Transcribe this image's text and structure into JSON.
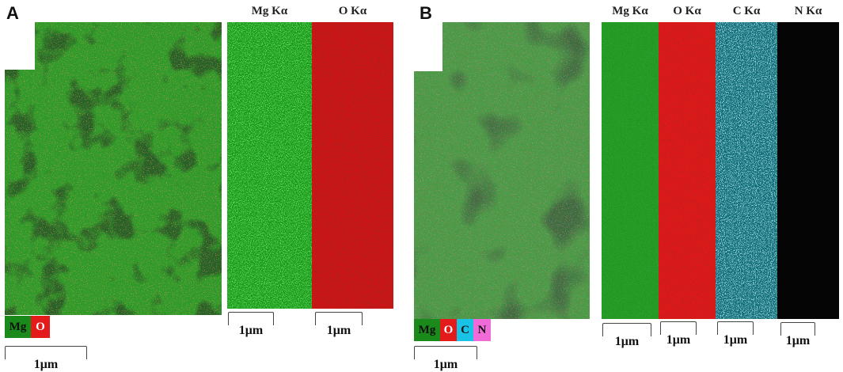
{
  "panels": {
    "a": {
      "letter": "A",
      "legend": [
        {
          "label": "Mg",
          "color": "#1a8a1a",
          "text_color": "#111111"
        },
        {
          "label": "O",
          "color": "#e31b1b",
          "text_color": "#ffffff"
        }
      ],
      "channels": [
        {
          "title": "Mg Kα",
          "color": "#22a822"
        },
        {
          "title": "O Kα",
          "color": "#d41414"
        }
      ],
      "scale_label": "1μm"
    },
    "b": {
      "letter": "B",
      "legend": [
        {
          "label": "Mg",
          "color": "#1a8a1a",
          "text_color": "#111111"
        },
        {
          "label": "O",
          "color": "#e31b1b",
          "text_color": "#ffffff"
        },
        {
          "label": "C",
          "color": "#19c3e6",
          "text_color": "#111111"
        },
        {
          "label": "N",
          "color": "#f06ad8",
          "text_color": "#111111"
        }
      ],
      "channels": [
        {
          "title": "Mg Kα",
          "color": "#1f9f1f"
        },
        {
          "title": "O Kα",
          "color": "#e01a1a"
        },
        {
          "title": "C Kα",
          "color": "#1bb8cc"
        },
        {
          "title": "N Kα",
          "color": "#c04ad0"
        }
      ],
      "scale_label": "1μm"
    }
  }
}
